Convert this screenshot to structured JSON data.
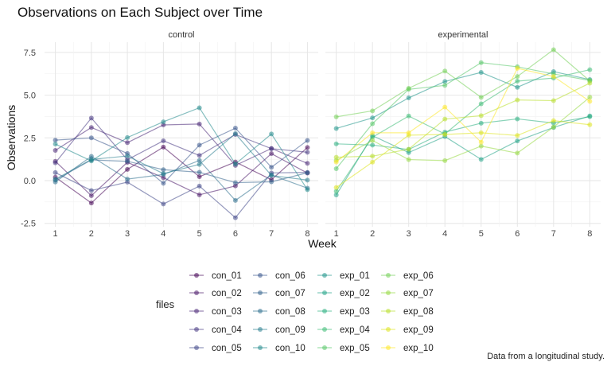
{
  "chart_data": {
    "type": "line",
    "title": "Observations on Each Subject over Time",
    "xlabel": "Week",
    "ylabel": "Observations",
    "caption": "Data from a longitudinal study.",
    "legend_title": "files",
    "legend_position": "bottom",
    "x": [
      1,
      2,
      3,
      4,
      5,
      6,
      7,
      8
    ],
    "xlim": [
      0.7,
      8.3
    ],
    "ylim": [
      -2.7,
      8.1
    ],
    "yticks": [
      -2.5,
      0.0,
      2.5,
      5.0,
      7.5
    ],
    "ytick_labels": [
      "-2.5",
      "0.0",
      "2.5",
      "5.0",
      "7.5"
    ],
    "grid": true,
    "facets": [
      "control",
      "experimental"
    ],
    "series": [
      {
        "name": "con_01",
        "facet": "control",
        "color": "#440154",
        "values": [
          0.2,
          -1.31,
          0.66,
          1.96,
          0.23,
          1.09,
          0.05,
          1.94
        ]
      },
      {
        "name": "con_02",
        "facet": "control",
        "color": "#481567",
        "values": [
          1.13,
          -0.88,
          1.07,
          0.17,
          -0.83,
          -0.31,
          1.58,
          0.44
        ]
      },
      {
        "name": "con_03",
        "facet": "control",
        "color": "#482677",
        "values": [
          1.77,
          3.11,
          2.22,
          3.26,
          3.31,
          0.89,
          1.88,
          1.01
        ]
      },
      {
        "name": "con_04",
        "facet": "control",
        "color": "#453781",
        "values": [
          1.04,
          3.66,
          1.22,
          2.33,
          1.47,
          2.7,
          1.87,
          1.66
        ]
      },
      {
        "name": "con_05",
        "facet": "control",
        "color": "#404788",
        "values": [
          0.47,
          -0.58,
          -0.09,
          -1.37,
          -0.32,
          -2.17,
          0.45,
          0.48
        ]
      },
      {
        "name": "con_06",
        "facet": "control",
        "color": "#39568C",
        "values": [
          2.37,
          2.5,
          1.59,
          -0.16,
          2.08,
          3.07,
          0.78,
          2.35
        ]
      },
      {
        "name": "con_07",
        "facet": "control",
        "color": "#33638D",
        "values": [
          0.03,
          1.21,
          1.13,
          0.64,
          0.49,
          -0.12,
          -0.07,
          0.46
        ]
      },
      {
        "name": "con_08",
        "facet": "control",
        "color": "#2D708E",
        "values": [
          -0.08,
          1.42,
          0.09,
          0.36,
          1.18,
          -1.16,
          0.33,
          -0.44
        ]
      },
      {
        "name": "con_09",
        "facet": "control",
        "color": "#287D8E",
        "values": [
          0.08,
          1.24,
          1.44,
          0.41,
          0.95,
          2.75,
          0.3,
          0.03
        ]
      },
      {
        "name": "con_10",
        "facet": "control",
        "color": "#238A8D",
        "values": [
          2.14,
          1.15,
          2.52,
          3.44,
          4.26,
          0.97,
          2.73,
          -0.53
        ]
      },
      {
        "name": "exp_01",
        "facet": "experimental",
        "color": "#1F968B",
        "values": [
          3.05,
          3.67,
          4.84,
          5.8,
          6.33,
          5.46,
          6.38,
          5.91
        ]
      },
      {
        "name": "exp_02",
        "facet": "experimental",
        "color": "#20A387",
        "values": [
          -0.84,
          2.63,
          1.64,
          2.58,
          1.24,
          2.32,
          3.11,
          3.78
        ]
      },
      {
        "name": "exp_03",
        "facet": "experimental",
        "color": "#29AF7F",
        "values": [
          2.15,
          2.08,
          1.82,
          2.84,
          3.36,
          3.61,
          3.37,
          3.74
        ]
      },
      {
        "name": "exp_04",
        "facet": "experimental",
        "color": "#3CBB75",
        "values": [
          -0.62,
          2.54,
          3.78,
          2.73,
          4.49,
          5.82,
          6.0,
          6.49
        ]
      },
      {
        "name": "exp_05",
        "facet": "experimental",
        "color": "#55C667",
        "values": [
          0.7,
          3.33,
          5.34,
          5.57,
          6.9,
          6.66,
          6.24,
          5.86
        ]
      },
      {
        "name": "exp_06",
        "facet": "experimental",
        "color": "#73D055",
        "values": [
          3.73,
          4.08,
          5.4,
          6.41,
          4.87,
          6.09,
          7.66,
          5.83
        ]
      },
      {
        "name": "exp_07",
        "facet": "experimental",
        "color": "#95D840",
        "values": [
          1.18,
          2.35,
          1.23,
          1.17,
          2.02,
          1.61,
          3.13,
          4.88
        ]
      },
      {
        "name": "exp_08",
        "facet": "experimental",
        "color": "#B8DE29",
        "values": [
          1.37,
          1.43,
          1.84,
          3.6,
          3.8,
          4.72,
          4.68,
          5.7
        ]
      },
      {
        "name": "exp_09",
        "facet": "experimental",
        "color": "#DCE319",
        "values": [
          -0.4,
          1.08,
          2.66,
          2.7,
          2.8,
          2.64,
          3.51,
          3.27
        ]
      },
      {
        "name": "exp_10",
        "facet": "experimental",
        "color": "#FDE725",
        "values": [
          1.09,
          2.8,
          2.8,
          4.3,
          2.25,
          6.57,
          6.09,
          4.64
        ]
      }
    ]
  }
}
